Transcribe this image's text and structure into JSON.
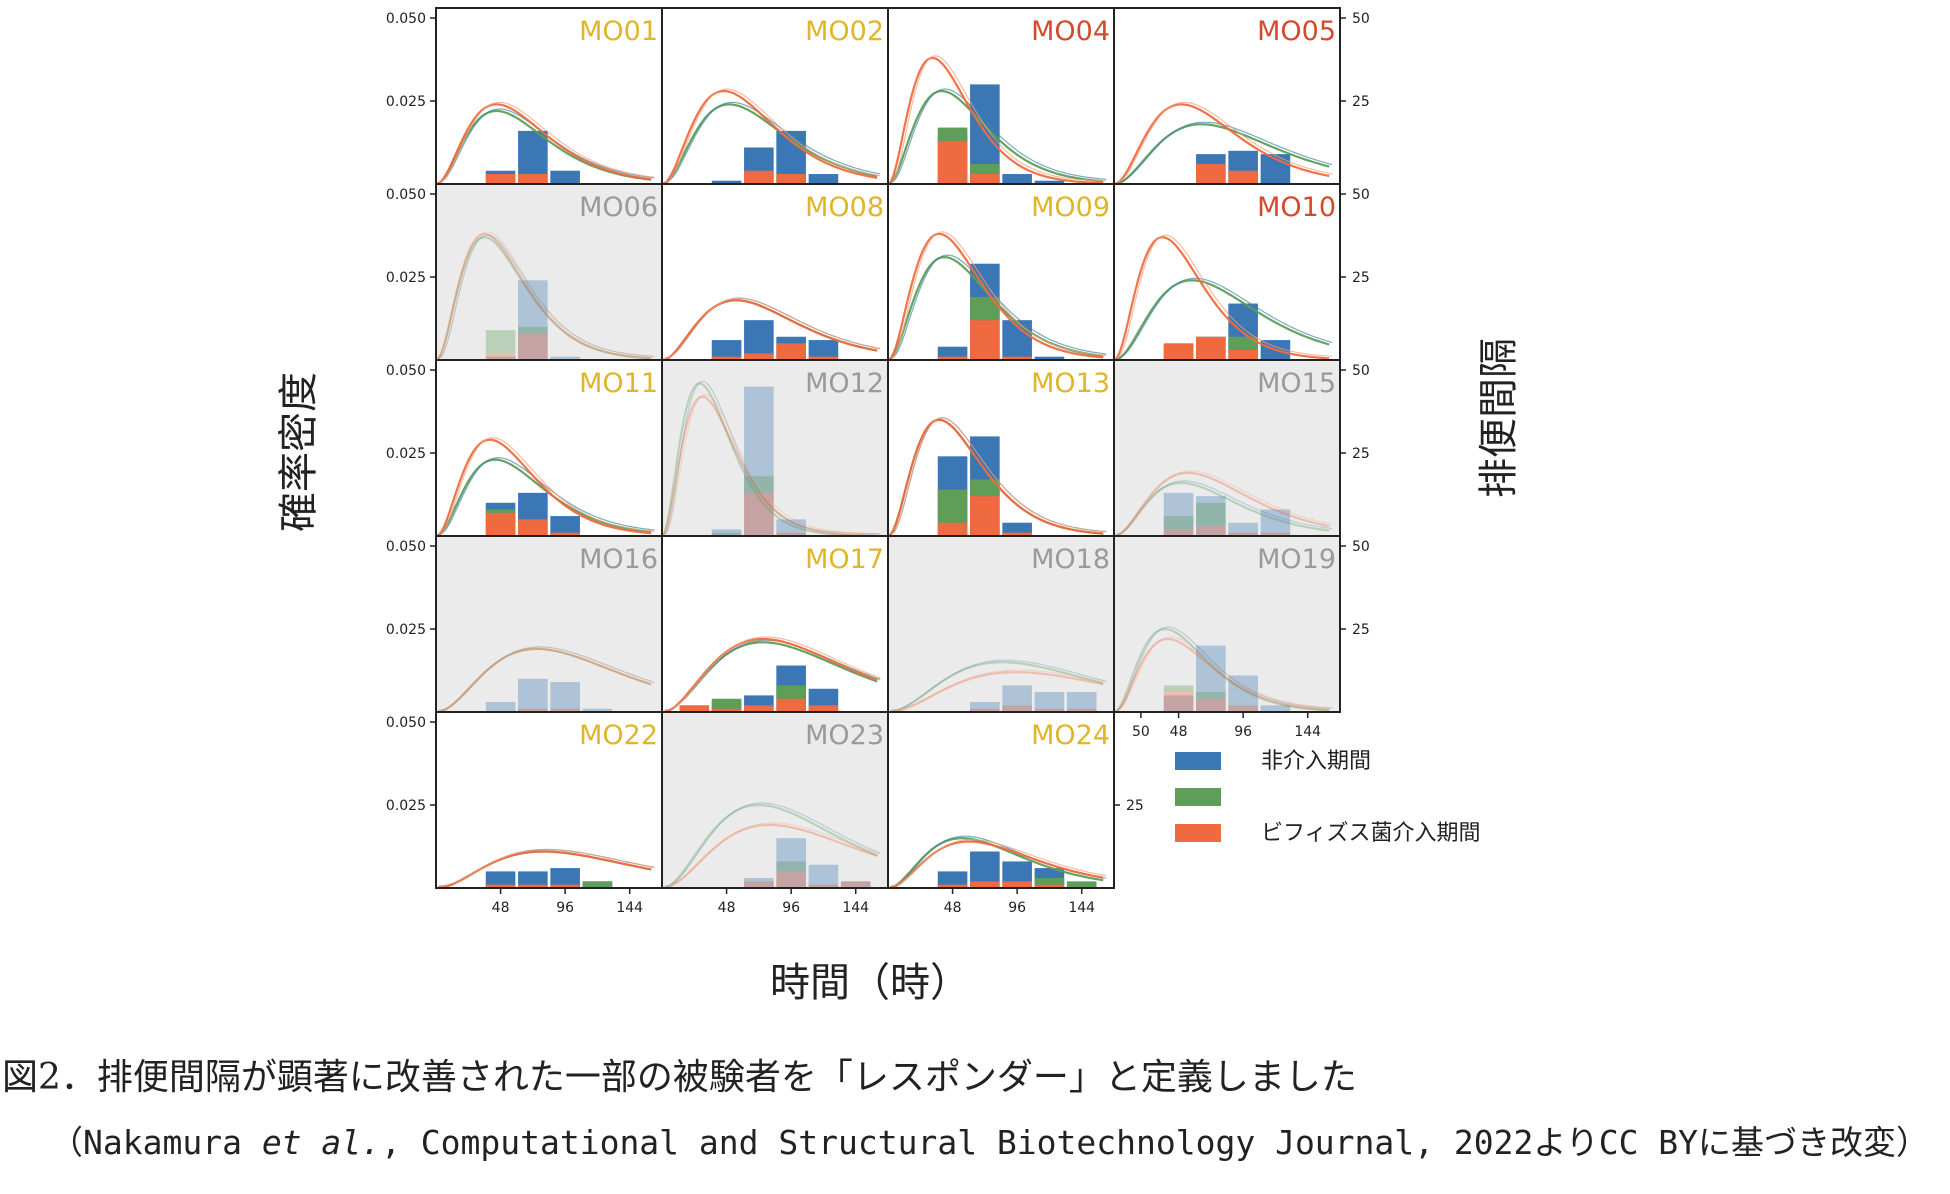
{
  "figure": {
    "ylabel": "確率密度",
    "xlabel": "時間（時）",
    "y2label": "排便間隔",
    "caption": "図2．排便間隔が顕著に改善された一部の被験者を「レスポンダー」と定義しました",
    "credit_prefix": "（Nakamura ",
    "credit_italic": "et al.",
    "credit_suffix": ", Computational and Structural Biotechnology Journal, 2022よりCC BYに基づき改変）"
  },
  "colors": {
    "responder": "#e0b52a",
    "strong_responder": "#d44a2c",
    "non_responder": "#9a9a9a",
    "non_intervention": "#3b76b5",
    "placebo": "#5e9e58",
    "bifidobacteria": "#ef6b3f",
    "panel_background_non_responder": "#ebebeb"
  },
  "chart_data": {
    "type": "bar",
    "title": "",
    "ylabel": "確率密度",
    "xlabel": "時間（時）",
    "y2label": "排便間隔",
    "ylim": [
      0,
      0.05
    ],
    "y_ticks": [
      "0.050",
      "0.025"
    ],
    "y2_ticks": [
      "50",
      "25"
    ],
    "x_ticks": [
      "48",
      "96",
      "144"
    ],
    "x_ticks_extra": [
      "50",
      "48",
      "96",
      "144"
    ],
    "grid": false,
    "legend_position": "right",
    "legend": [
      {
        "label": "非介入期間",
        "color": "#3b76b5"
      },
      {
        "label": "",
        "color": "#5e9e58"
      },
      {
        "label": "ビフィズス菌介入期間",
        "color": "#ef6b3f"
      }
    ],
    "series": [
      {
        "name": "非介入期間"
      },
      {
        "name": ""
      },
      {
        "name": "ビフィズス菌介入期間"
      }
    ],
    "panels": [
      {
        "id": "MO01",
        "status": "responder",
        "bars": [
          [
            24,
            0.004,
            0,
            0.003
          ],
          [
            48,
            0.016,
            0,
            0.003
          ],
          [
            72,
            0.004,
            0,
            0
          ],
          [
            96,
            0,
            0,
            0
          ]
        ],
        "curves": [
          [
            45,
            0.022
          ],
          [
            45,
            0.024
          ]
        ]
      },
      {
        "id": "MO02",
        "status": "responder",
        "bars": [
          [
            24,
            0.001,
            0,
            0
          ],
          [
            48,
            0.011,
            0,
            0.004
          ],
          [
            72,
            0.016,
            0,
            0.003
          ],
          [
            96,
            0.003,
            0,
            0
          ]
        ],
        "curves": [
          [
            50,
            0.024
          ],
          [
            46,
            0.028
          ]
        ]
      },
      {
        "id": "MO04",
        "status": "strong_responder",
        "bars": [
          [
            24,
            0.015,
            0.004,
            0.013
          ],
          [
            48,
            0.03,
            0.003,
            0.003
          ],
          [
            72,
            0.003,
            0,
            0
          ],
          [
            96,
            0.001,
            0,
            0
          ]
        ],
        "curves": [
          [
            40,
            0.028
          ],
          [
            33,
            0.038
          ]
        ]
      },
      {
        "id": "MO05",
        "status": "strong_responder",
        "bars": [
          [
            48,
            0.009,
            0,
            0.006
          ],
          [
            72,
            0.01,
            0,
            0.004
          ],
          [
            96,
            0.009,
            0,
            0
          ]
        ],
        "curves": [
          [
            65,
            0.018
          ],
          [
            50,
            0.024
          ]
        ]
      },
      {
        "id": "MO06",
        "status": "non_responder",
        "bars": [
          [
            24,
            0.001,
            0.007,
            0.002
          ],
          [
            48,
            0.024,
            0.002,
            0.008
          ],
          [
            72,
            0.001,
            0,
            0
          ]
        ],
        "curves": [
          [
            36,
            0.037
          ],
          [
            36,
            0.038
          ]
        ]
      },
      {
        "id": "MO08",
        "status": "responder",
        "bars": [
          [
            24,
            0.006,
            0,
            0.001
          ],
          [
            48,
            0.012,
            0,
            0.002
          ],
          [
            72,
            0.007,
            0,
            0.005
          ],
          [
            96,
            0.006,
            0,
            0.001
          ]
        ],
        "curves": [
          [
            55,
            0.018
          ],
          [
            55,
            0.018
          ]
        ]
      },
      {
        "id": "MO09",
        "status": "responder",
        "bars": [
          [
            24,
            0.004,
            0,
            0.001
          ],
          [
            48,
            0.029,
            0.007,
            0.012
          ],
          [
            72,
            0.012,
            0,
            0.001
          ],
          [
            96,
            0.001,
            0,
            0
          ]
        ],
        "curves": [
          [
            42,
            0.031
          ],
          [
            38,
            0.038
          ]
        ]
      },
      {
        "id": "MO10",
        "status": "strong_responder",
        "bars": [
          [
            24,
            0.005,
            0,
            0.005
          ],
          [
            48,
            0.007,
            0,
            0.007
          ],
          [
            72,
            0.017,
            0.004,
            0.003
          ],
          [
            96,
            0.006,
            0,
            0
          ]
        ],
        "curves": [
          [
            58,
            0.024
          ],
          [
            36,
            0.037
          ]
        ]
      },
      {
        "id": "MO11",
        "status": "responder",
        "bars": [
          [
            24,
            0.01,
            0.001,
            0.007
          ],
          [
            48,
            0.013,
            0,
            0.005
          ],
          [
            72,
            0.006,
            0,
            0.001
          ]
        ],
        "curves": [
          [
            44,
            0.023
          ],
          [
            40,
            0.029
          ]
        ]
      },
      {
        "id": "MO12",
        "status": "non_responder",
        "bars": [
          [
            24,
            0.002,
            0.001,
            0
          ],
          [
            48,
            0.045,
            0.005,
            0.013
          ],
          [
            72,
            0.005,
            0,
            0.001
          ]
        ],
        "curves": [
          [
            28,
            0.046
          ],
          [
            30,
            0.042
          ]
        ]
      },
      {
        "id": "MO13",
        "status": "responder",
        "bars": [
          [
            24,
            0.024,
            0.01,
            0.004
          ],
          [
            48,
            0.03,
            0.005,
            0.012
          ],
          [
            72,
            0.004,
            0,
            0.001
          ]
        ],
        "curves": [
          [
            38,
            0.035
          ],
          [
            38,
            0.035
          ]
        ]
      },
      {
        "id": "MO15",
        "status": "non_responder",
        "bars": [
          [
            24,
            0.013,
            0.004,
            0.002
          ],
          [
            48,
            0.012,
            0.007,
            0.003
          ],
          [
            72,
            0.004,
            0,
            0.001
          ],
          [
            96,
            0.008,
            0,
            0.001
          ]
        ],
        "curves": [
          [
            50,
            0.016
          ],
          [
            55,
            0.019
          ]
        ]
      },
      {
        "id": "MO16",
        "status": "non_responder",
        "bars": [
          [
            24,
            0.003,
            0,
            0
          ],
          [
            48,
            0.01,
            0,
            0.001
          ],
          [
            72,
            0.009,
            0,
            0.001
          ],
          [
            96,
            0.001,
            0,
            0
          ]
        ],
        "curves": [
          [
            75,
            0.019
          ],
          [
            75,
            0.019
          ]
        ]
      },
      {
        "id": "MO17",
        "status": "responder",
        "bars": [
          [
            0,
            0.002,
            0,
            0.002
          ],
          [
            24,
            0.003,
            0.003,
            0.001
          ],
          [
            48,
            0.005,
            0,
            0.002
          ],
          [
            72,
            0.014,
            0.004,
            0.004
          ],
          [
            96,
            0.007,
            0,
            0.002
          ]
        ],
        "curves": [
          [
            75,
            0.021
          ],
          [
            75,
            0.022
          ]
        ]
      },
      {
        "id": "MO18",
        "status": "non_responder",
        "bars": [
          [
            48,
            0.003,
            0,
            0.001
          ],
          [
            72,
            0.008,
            0,
            0.002
          ],
          [
            96,
            0.006,
            0,
            0.001
          ],
          [
            120,
            0.006,
            0,
            0.001
          ]
        ],
        "curves": [
          [
            85,
            0.015
          ],
          [
            95,
            0.012
          ]
        ]
      },
      {
        "id": "MO19",
        "status": "non_responder",
        "bars": [
          [
            24,
            0.005,
            0.002,
            0.006
          ],
          [
            48,
            0.02,
            0.002,
            0.004
          ],
          [
            72,
            0.011,
            0,
            0.002
          ],
          [
            96,
            0.002,
            0,
            0
          ]
        ],
        "curves": [
          [
            38,
            0.025
          ],
          [
            40,
            0.022
          ]
        ]
      },
      {
        "id": "MO22",
        "status": "responder",
        "bars": [
          [
            24,
            0.005,
            0,
            0.001
          ],
          [
            48,
            0.005,
            0,
            0.001
          ],
          [
            72,
            0.006,
            0,
            0.001
          ],
          [
            96,
            0.002,
            0.002,
            0
          ]
        ],
        "curves": [
          [
            80,
            0.011
          ],
          [
            80,
            0.011
          ]
        ]
      },
      {
        "id": "MO23",
        "status": "non_responder",
        "bars": [
          [
            48,
            0.003,
            0,
            0.002
          ],
          [
            72,
            0.015,
            0.003,
            0.005
          ],
          [
            96,
            0.007,
            0,
            0.001
          ],
          [
            120,
            0.002,
            0,
            0.002
          ]
        ],
        "curves": [
          [
            72,
            0.025
          ],
          [
            80,
            0.019
          ]
        ]
      },
      {
        "id": "MO24",
        "status": "responder",
        "bars": [
          [
            24,
            0.005,
            0,
            0.001
          ],
          [
            48,
            0.011,
            0,
            0.002
          ],
          [
            72,
            0.008,
            0,
            0.002
          ],
          [
            96,
            0.006,
            0.002,
            0.001
          ],
          [
            120,
            0.001,
            0.002,
            0
          ]
        ],
        "curves": [
          [
            55,
            0.015
          ],
          [
            60,
            0.014
          ]
        ]
      }
    ]
  }
}
